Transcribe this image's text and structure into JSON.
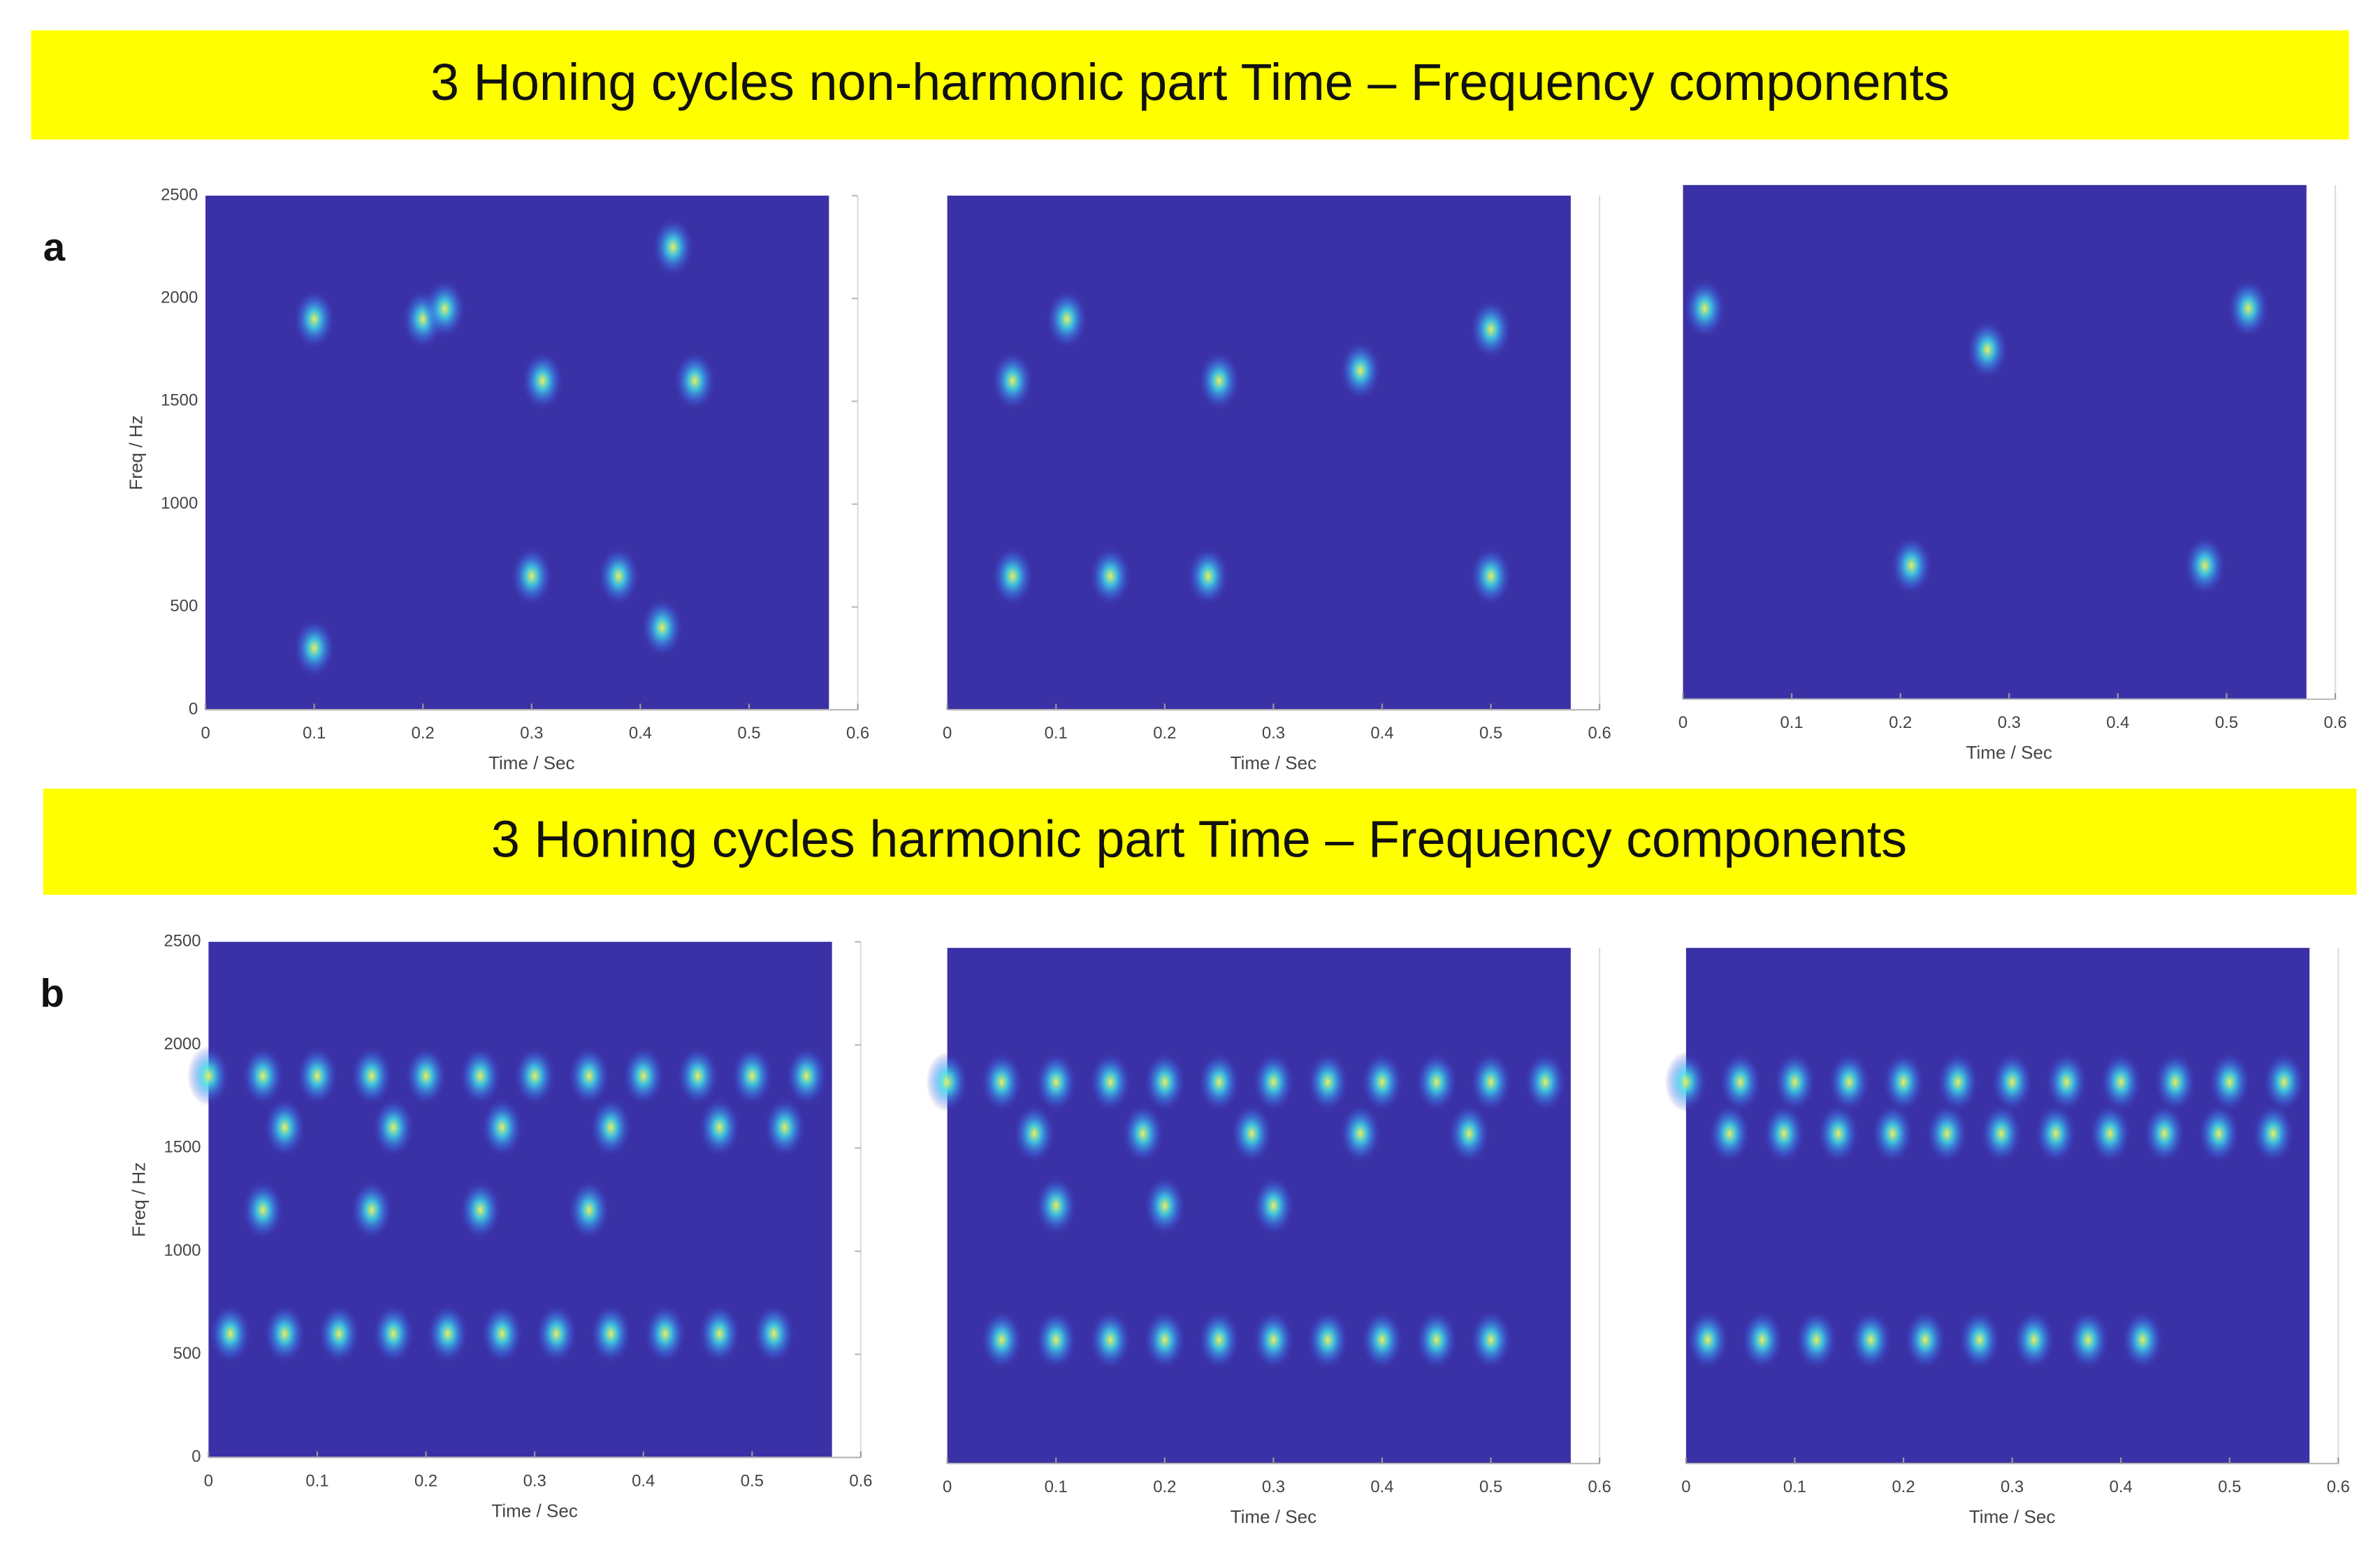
{
  "headings": [
    "3 Honing cycles non-harmonic part Time – Frequency components",
    "3 Honing cycles harmonic part Time – Frequency components"
  ],
  "panel_labels": [
    "a",
    "b"
  ],
  "chart_data": [
    {
      "type": "spectrogram",
      "xlabel": "Time / Sec",
      "ylabel": "Freq / Hz",
      "xlim": [
        0,
        0.6
      ],
      "ylim": [
        0,
        2500
      ],
      "xticks": [
        0,
        0.1,
        0.2,
        0.3,
        0.4,
        0.5,
        0.6
      ],
      "yticks": [
        0,
        500,
        1000,
        1500,
        2000,
        2500
      ],
      "x": [
        0.1,
        0.2,
        0.22,
        0.31,
        0.45,
        0.43,
        0.3,
        0.38,
        0.1,
        0.42
      ],
      "y": [
        1900,
        1900,
        1950,
        1600,
        1600,
        2250,
        650,
        650,
        300,
        400
      ]
    },
    {
      "type": "spectrogram",
      "xlabel": "Time / Sec",
      "xlim": [
        0,
        0.6
      ],
      "ylim": [
        0,
        2500
      ],
      "xticks": [
        0,
        0.1,
        0.2,
        0.3,
        0.4,
        0.5,
        0.6
      ],
      "x": [
        0.11,
        0.06,
        0.25,
        0.38,
        0.5,
        0.06,
        0.15,
        0.24,
        0.5
      ],
      "y": [
        1900,
        1600,
        1600,
        1650,
        1850,
        650,
        650,
        650,
        650
      ]
    },
    {
      "type": "spectrogram",
      "xlabel": "Time / Sec",
      "xlim": [
        0,
        0.6
      ],
      "ylim": [
        0,
        2500
      ],
      "xticks": [
        0,
        0.1,
        0.2,
        0.3,
        0.4,
        0.5,
        0.6
      ],
      "x": [
        0.02,
        0.52,
        0.28,
        0.21,
        0.48
      ],
      "y": [
        1900,
        1900,
        1700,
        650,
        650
      ]
    },
    {
      "type": "spectrogram",
      "xlabel": "Time / Sec",
      "ylabel": "Freq / Hz",
      "xlim": [
        0,
        0.6
      ],
      "ylim": [
        0,
        2500
      ],
      "xticks": [
        0,
        0.1,
        0.2,
        0.3,
        0.4,
        0.5,
        0.6
      ],
      "yticks": [
        0,
        500,
        1000,
        1500,
        2000,
        2500
      ],
      "x": [
        0,
        0.05,
        0.1,
        0.15,
        0.2,
        0.25,
        0.3,
        0.35,
        0.4,
        0.45,
        0.5,
        0.55,
        0.07,
        0.17,
        0.27,
        0.37,
        0.47,
        0.53,
        0.02,
        0.07,
        0.12,
        0.17,
        0.22,
        0.27,
        0.32,
        0.37,
        0.42,
        0.47,
        0.52,
        0.05,
        0.15,
        0.25,
        0.35
      ],
      "y": [
        1850,
        1850,
        1850,
        1850,
        1850,
        1850,
        1850,
        1850,
        1850,
        1850,
        1850,
        1850,
        1600,
        1600,
        1600,
        1600,
        1600,
        1600,
        600,
        600,
        600,
        600,
        600,
        600,
        600,
        600,
        600,
        600,
        600,
        1200,
        1200,
        1200,
        1200
      ]
    },
    {
      "type": "spectrogram",
      "xlabel": "Time / Sec",
      "xlim": [
        0,
        0.6
      ],
      "ylim": [
        0,
        2500
      ],
      "xticks": [
        0,
        0.1,
        0.2,
        0.3,
        0.4,
        0.5,
        0.6
      ],
      "x": [
        0,
        0.05,
        0.1,
        0.15,
        0.2,
        0.25,
        0.3,
        0.35,
        0.4,
        0.45,
        0.5,
        0.55,
        0.08,
        0.18,
        0.28,
        0.38,
        0.48,
        0.05,
        0.1,
        0.15,
        0.2,
        0.25,
        0.3,
        0.35,
        0.4,
        0.45,
        0.5,
        0.1,
        0.2,
        0.3
      ],
      "y": [
        1850,
        1850,
        1850,
        1850,
        1850,
        1850,
        1850,
        1850,
        1850,
        1850,
        1850,
        1850,
        1600,
        1600,
        1600,
        1600,
        1600,
        600,
        600,
        600,
        600,
        600,
        600,
        600,
        600,
        600,
        600,
        1250,
        1250,
        1250
      ]
    },
    {
      "type": "spectrogram",
      "xlabel": "Time / Sec",
      "xlim": [
        0,
        0.6
      ],
      "ylim": [
        0,
        2500
      ],
      "xticks": [
        0,
        0.1,
        0.2,
        0.3,
        0.4,
        0.5,
        0.6
      ],
      "x": [
        0,
        0.05,
        0.1,
        0.15,
        0.2,
        0.25,
        0.3,
        0.35,
        0.4,
        0.45,
        0.5,
        0.55,
        0.04,
        0.09,
        0.14,
        0.19,
        0.24,
        0.29,
        0.34,
        0.39,
        0.44,
        0.49,
        0.54,
        0.02,
        0.07,
        0.12,
        0.17,
        0.22,
        0.27,
        0.32,
        0.37,
        0.42
      ],
      "y": [
        1850,
        1850,
        1850,
        1850,
        1850,
        1850,
        1850,
        1850,
        1850,
        1850,
        1850,
        1850,
        1600,
        1600,
        1600,
        1600,
        1600,
        1600,
        1600,
        1600,
        1600,
        1600,
        1600,
        600,
        600,
        600,
        600,
        600,
        600,
        600,
        600,
        600
      ]
    }
  ]
}
